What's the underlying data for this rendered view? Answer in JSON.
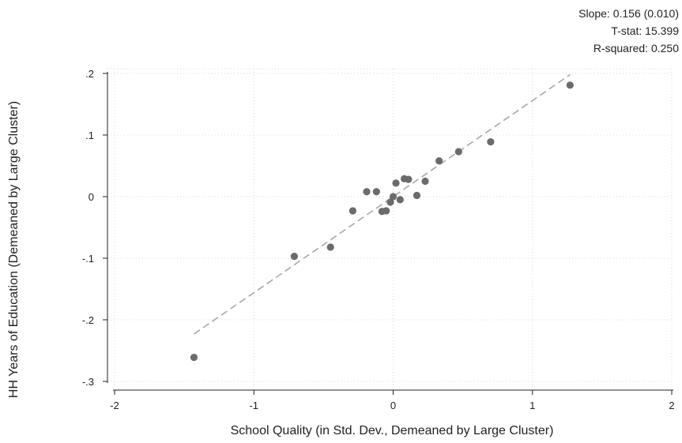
{
  "stats": {
    "slope": "Slope: 0.156 (0.010)",
    "tstat": "T-stat: 15.399",
    "rsquared": "R-squared: 0.250"
  },
  "chart_data": {
    "type": "scatter",
    "xlabel": "School Quality (in Std. Dev., Demeaned by Large Cluster)",
    "ylabel": "HH Years of Education (Demeaned by Large Cluster)",
    "xlim": [
      -2,
      2
    ],
    "ylim": [
      -0.3,
      0.2
    ],
    "xticks": [
      -2,
      -1,
      0,
      1,
      2
    ],
    "xtick_labels": [
      "-2",
      "-1",
      "0",
      "1",
      "2"
    ],
    "yticks": [
      -0.3,
      -0.2,
      -0.1,
      0,
      0.1,
      0.2
    ],
    "ytick_labels": [
      "-.3",
      "-.2",
      "-.1",
      "0",
      ".1",
      ".2"
    ],
    "grid": true,
    "points": [
      {
        "x": -1.43,
        "y": -0.261
      },
      {
        "x": -0.71,
        "y": -0.097
      },
      {
        "x": -0.45,
        "y": -0.082
      },
      {
        "x": -0.29,
        "y": -0.023
      },
      {
        "x": -0.19,
        "y": 0.008
      },
      {
        "x": -0.12,
        "y": 0.008
      },
      {
        "x": -0.08,
        "y": -0.024
      },
      {
        "x": -0.05,
        "y": -0.023
      },
      {
        "x": -0.02,
        "y": -0.009
      },
      {
        "x": 0.0,
        "y": 0.0
      },
      {
        "x": 0.02,
        "y": 0.022
      },
      {
        "x": 0.05,
        "y": -0.005
      },
      {
        "x": 0.08,
        "y": 0.029
      },
      {
        "x": 0.11,
        "y": 0.028
      },
      {
        "x": 0.17,
        "y": 0.002
      },
      {
        "x": 0.23,
        "y": 0.025
      },
      {
        "x": 0.33,
        "y": 0.058
      },
      {
        "x": 0.47,
        "y": 0.073
      },
      {
        "x": 0.7,
        "y": 0.089
      },
      {
        "x": 1.27,
        "y": 0.181
      }
    ],
    "fit_line": {
      "x": [
        -1.43,
        1.27
      ],
      "y": [
        -0.223,
        0.198
      ],
      "style": "dashed"
    },
    "colors": {
      "points": "#6b6b6b",
      "fit": "#a8a8a8",
      "grid": "#d9d9d9"
    }
  }
}
